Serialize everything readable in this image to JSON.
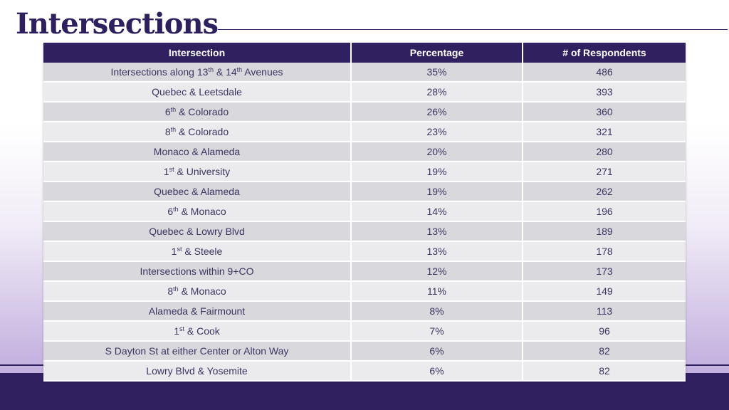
{
  "page": {
    "title": "Intersections"
  },
  "table": {
    "headers": [
      "Intersection",
      "Percentage",
      "# of Respondents"
    ],
    "rows": [
      {
        "parts": [
          {
            "t": "Intersections along 13"
          },
          {
            "t": "th",
            "sup": true
          },
          {
            "t": " & 14"
          },
          {
            "t": "th",
            "sup": true
          },
          {
            "t": " Avenues"
          }
        ],
        "percentage": "35%",
        "respondents": "486"
      },
      {
        "parts": [
          {
            "t": "Quebec & Leetsdale"
          }
        ],
        "percentage": "28%",
        "respondents": "393"
      },
      {
        "parts": [
          {
            "t": "6"
          },
          {
            "t": "th",
            "sup": true
          },
          {
            "t": " & Colorado"
          }
        ],
        "percentage": "26%",
        "respondents": "360"
      },
      {
        "parts": [
          {
            "t": "8"
          },
          {
            "t": "th",
            "sup": true
          },
          {
            "t": " & Colorado"
          }
        ],
        "percentage": "23%",
        "respondents": "321"
      },
      {
        "parts": [
          {
            "t": "Monaco & Alameda"
          }
        ],
        "percentage": "20%",
        "respondents": "280"
      },
      {
        "parts": [
          {
            "t": "1"
          },
          {
            "t": "st",
            "sup": true
          },
          {
            "t": " & University"
          }
        ],
        "percentage": "19%",
        "respondents": "271"
      },
      {
        "parts": [
          {
            "t": "Quebec & Alameda"
          }
        ],
        "percentage": "19%",
        "respondents": "262"
      },
      {
        "parts": [
          {
            "t": "6"
          },
          {
            "t": "th",
            "sup": true
          },
          {
            "t": " & Monaco"
          }
        ],
        "percentage": "14%",
        "respondents": "196"
      },
      {
        "parts": [
          {
            "t": "Quebec & Lowry Blvd"
          }
        ],
        "percentage": "13%",
        "respondents": "189"
      },
      {
        "parts": [
          {
            "t": "1"
          },
          {
            "t": "st",
            "sup": true
          },
          {
            "t": " & Steele"
          }
        ],
        "percentage": "13%",
        "respondents": "178"
      },
      {
        "parts": [
          {
            "t": "Intersections within 9+CO"
          }
        ],
        "percentage": "12%",
        "respondents": "173"
      },
      {
        "parts": [
          {
            "t": "8"
          },
          {
            "t": "th",
            "sup": true
          },
          {
            "t": " & Monaco"
          }
        ],
        "percentage": "11%",
        "respondents": "149"
      },
      {
        "parts": [
          {
            "t": "Alameda & Fairmount"
          }
        ],
        "percentage": "8%",
        "respondents": "113"
      },
      {
        "parts": [
          {
            "t": "1"
          },
          {
            "t": "st",
            "sup": true
          },
          {
            "t": " & Cook"
          }
        ],
        "percentage": "7%",
        "respondents": "96"
      },
      {
        "parts": [
          {
            "t": "S Dayton St at either Center or Alton Way"
          }
        ],
        "percentage": "6%",
        "respondents": "82"
      },
      {
        "parts": [
          {
            "t": "Lowry Blvd & Yosemite"
          }
        ],
        "percentage": "6%",
        "respondents": "82"
      }
    ]
  },
  "colors": {
    "brand": "#30205f",
    "row_odd": "#d9d9dd",
    "row_even": "#ebebee"
  }
}
